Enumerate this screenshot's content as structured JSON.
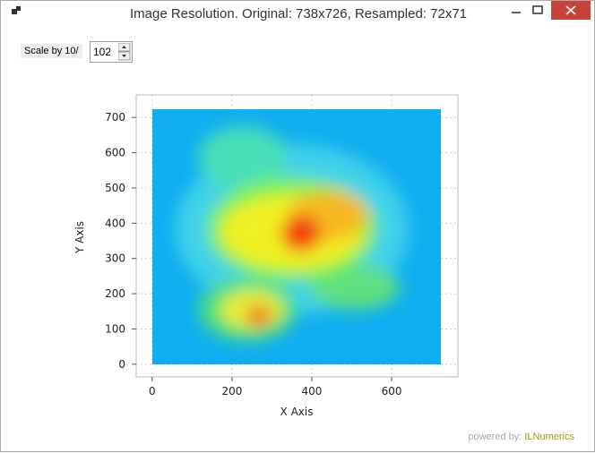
{
  "window": {
    "title": "Image Resolution. Original: 738x726, Resampled: 72x71"
  },
  "controls": {
    "scale_label": "Scale by 10/",
    "scale_value": 102
  },
  "chart_data": {
    "type": "heatmap",
    "xlabel": "X Axis",
    "ylabel": "Y Axis",
    "xlim": [
      -40,
      766
    ],
    "ylim": [
      -36,
      764
    ],
    "xticks": [
      0,
      200,
      400,
      600
    ],
    "yticks": [
      0,
      100,
      200,
      300,
      400,
      500,
      600,
      700
    ],
    "grid": true
  },
  "footer": {
    "prefix": "powered by:",
    "brand": "ILNumerics"
  }
}
